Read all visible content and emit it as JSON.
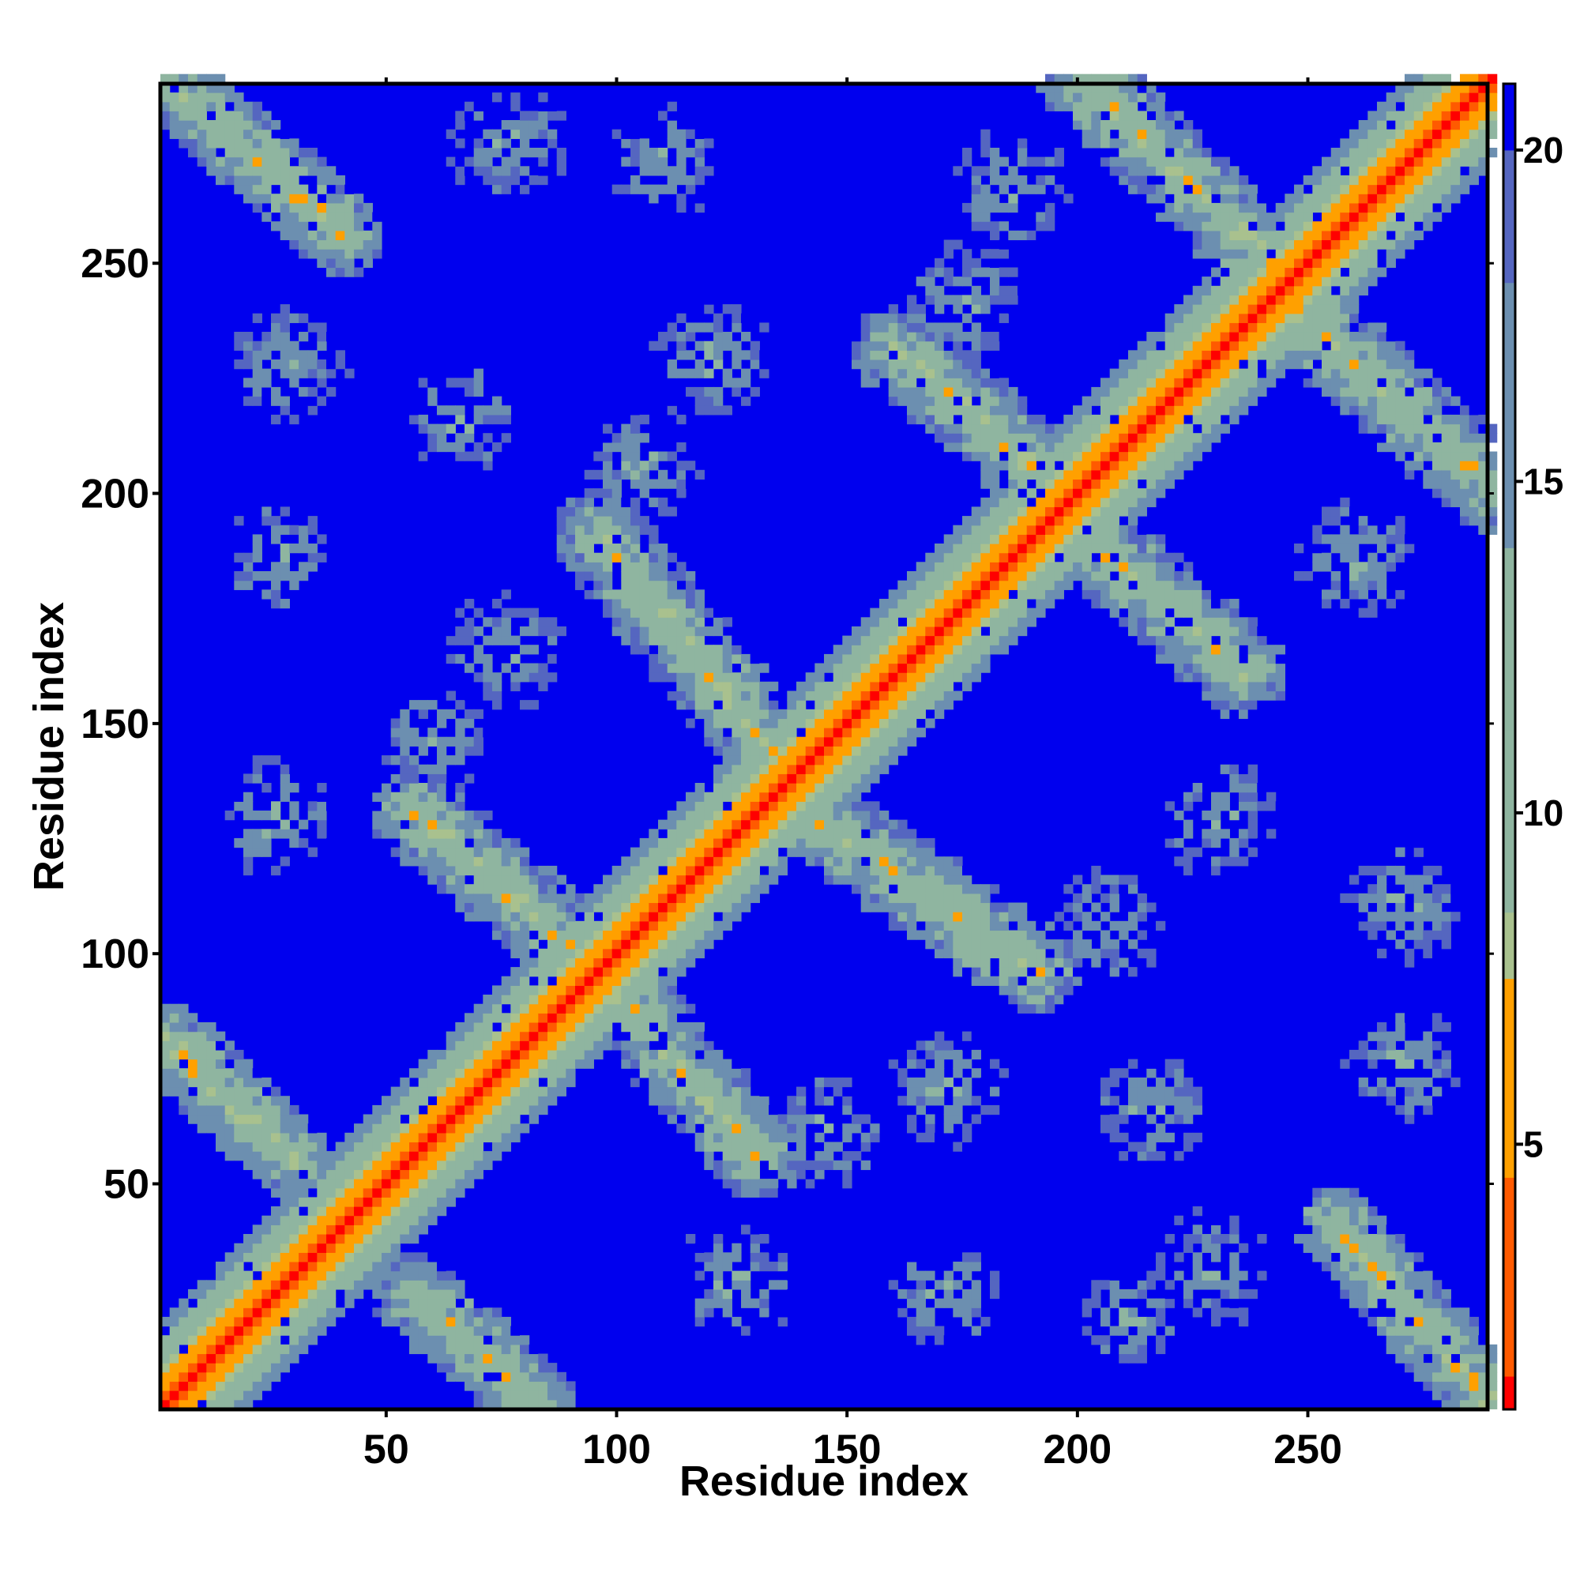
{
  "chart_data": {
    "type": "heatmap",
    "title": "",
    "xlabel": "Residue index",
    "ylabel": "Residue index",
    "x_range": [
      1,
      289
    ],
    "y_range": [
      1,
      289
    ],
    "x_ticks": [
      50,
      100,
      150,
      200,
      250
    ],
    "y_ticks": [
      50,
      100,
      150,
      200,
      250
    ],
    "colorbar": {
      "ticks": [
        5,
        10,
        15,
        20
      ],
      "range": [
        1,
        21
      ],
      "stops": [
        {
          "value": 1.5,
          "color": "#ff0000"
        },
        {
          "value": 4.5,
          "color": "#ff5a00"
        },
        {
          "value": 7.5,
          "color": "#ffa000"
        },
        {
          "value": 8.5,
          "color": "#a9c18e"
        },
        {
          "value": 14.0,
          "color": "#8fb5a0"
        },
        {
          "value": 18.0,
          "color": "#6c8fb0"
        },
        {
          "value": 20.0,
          "color": "#5566c0"
        },
        {
          "value": 21.0,
          "color": "#0000ee"
        }
      ]
    },
    "background_color": "#0000ee",
    "description_of_content": "symmetric residue-residue distance map",
    "bands": [
      {
        "a0": 1,
        "b0": 1,
        "a1": 289,
        "b1": 289,
        "width": 12,
        "kind": "diagonal"
      },
      {
        "a0": 1,
        "b0": 289,
        "a1": 40,
        "b1": 255,
        "width": 9,
        "kind": "anti"
      },
      {
        "a0": 1,
        "b0": 80,
        "a1": 28,
        "b1": 55,
        "width": 9,
        "kind": "anti"
      },
      {
        "a0": 55,
        "b0": 25,
        "a1": 82,
        "b1": 1,
        "width": 9,
        "kind": "anti"
      },
      {
        "a0": 55,
        "b0": 130,
        "a1": 95,
        "b1": 95,
        "width": 10,
        "kind": "anti"
      },
      {
        "a0": 95,
        "b0": 95,
        "a1": 130,
        "b1": 55,
        "width": 10,
        "kind": "anti"
      },
      {
        "a0": 95,
        "b0": 190,
        "a1": 135,
        "b1": 140,
        "width": 10,
        "kind": "anti"
      },
      {
        "a0": 140,
        "b0": 130,
        "a1": 190,
        "b1": 95,
        "width": 10,
        "kind": "anti"
      },
      {
        "a0": 160,
        "b0": 230,
        "a1": 195,
        "b1": 200,
        "width": 10,
        "kind": "anti"
      },
      {
        "a0": 195,
        "b0": 195,
        "a1": 235,
        "b1": 160,
        "width": 10,
        "kind": "anti"
      },
      {
        "a0": 200,
        "b0": 289,
        "a1": 245,
        "b1": 245,
        "width": 10,
        "kind": "anti"
      },
      {
        "a0": 245,
        "b0": 240,
        "a1": 289,
        "b1": 200,
        "width": 10,
        "kind": "anti"
      },
      {
        "a0": 255,
        "b0": 40,
        "a1": 289,
        "b1": 1,
        "width": 9,
        "kind": "anti"
      }
    ],
    "patches": [
      {
        "a": 28,
        "b": 228,
        "r": 14
      },
      {
        "a": 75,
        "b": 275,
        "r": 14
      },
      {
        "a": 25,
        "b": 185,
        "r": 12
      },
      {
        "a": 75,
        "b": 165,
        "r": 14
      },
      {
        "a": 25,
        "b": 128,
        "r": 14
      },
      {
        "a": 60,
        "b": 145,
        "r": 12
      },
      {
        "a": 110,
        "b": 270,
        "r": 14
      },
      {
        "a": 120,
        "b": 228,
        "r": 14
      },
      {
        "a": 175,
        "b": 240,
        "r": 14
      },
      {
        "a": 185,
        "b": 265,
        "r": 14
      },
      {
        "a": 65,
        "b": 215,
        "r": 12
      },
      {
        "a": 105,
        "b": 205,
        "r": 14
      },
      {
        "a": 145,
        "b": 60,
        "r": 12
      },
      {
        "a": 125,
        "b": 28,
        "r": 14
      },
      {
        "a": 170,
        "b": 70,
        "r": 14
      },
      {
        "a": 170,
        "b": 25,
        "r": 12
      },
      {
        "a": 230,
        "b": 128,
        "r": 14
      },
      {
        "a": 270,
        "b": 110,
        "r": 14
      },
      {
        "a": 228,
        "b": 30,
        "r": 14
      },
      {
        "a": 270,
        "b": 75,
        "r": 14
      },
      {
        "a": 215,
        "b": 65,
        "r": 12
      },
      {
        "a": 260,
        "b": 185,
        "r": 14
      },
      {
        "a": 205,
        "b": 105,
        "r": 14
      },
      {
        "a": 210,
        "b": 20,
        "r": 10
      }
    ]
  }
}
